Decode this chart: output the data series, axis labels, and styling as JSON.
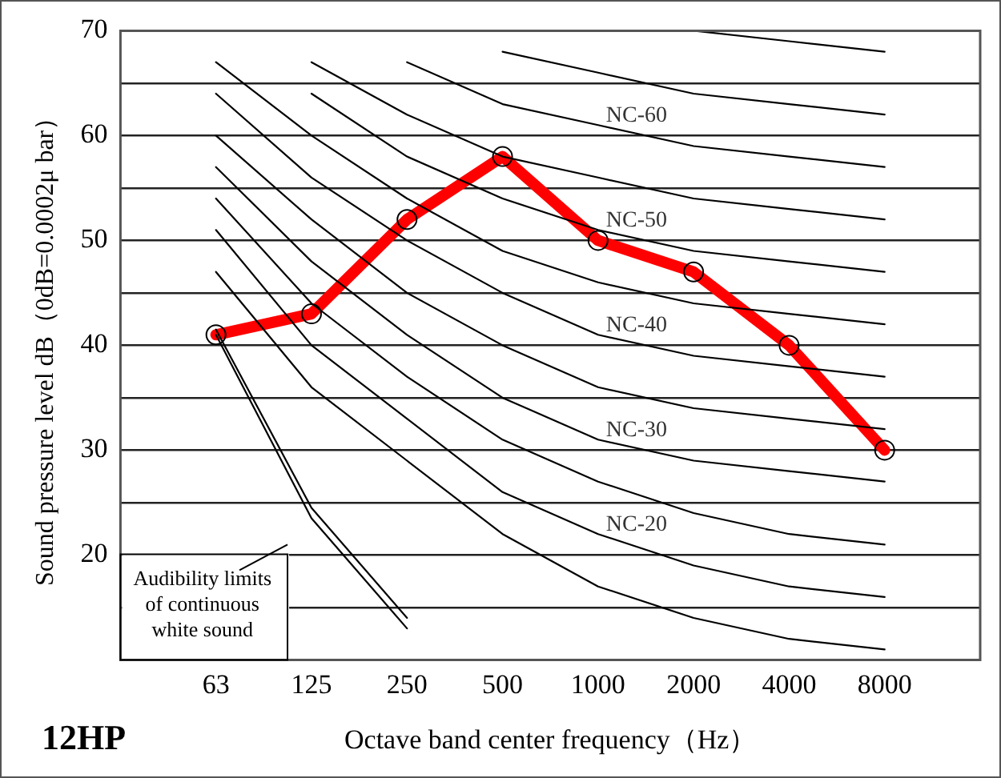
{
  "chart_data": {
    "type": "line",
    "xlabel": "Octave band center frequency（Hz）",
    "ylabel": "Sound pressure level dB（0dB=0.0002μ bar）",
    "categories": [
      "63",
      "125",
      "250",
      "500",
      "1000",
      "2000",
      "4000",
      "8000"
    ],
    "ylim": [
      10,
      70
    ],
    "yticks": [
      {
        "value": 10,
        "label": null
      },
      {
        "value": 15,
        "label": null
      },
      20,
      {
        "value": 25,
        "label": null
      },
      30,
      {
        "value": 35,
        "label": null
      },
      40,
      {
        "value": 45,
        "label": null
      },
      50,
      {
        "value": 55,
        "label": null
      },
      60,
      {
        "value": 65,
        "label": null
      },
      70
    ],
    "grid": "y",
    "legend": false,
    "series": [
      {
        "color": "#000000",
        "marker": "none",
        "values": [
          null,
          null,
          null,
          null,
          null,
          70,
          69,
          68
        ]
      },
      {
        "color": "#000000",
        "marker": "none",
        "values": [
          null,
          null,
          null,
          68,
          66,
          64,
          63,
          62
        ]
      },
      {
        "name": "NC-60",
        "color": "#000000",
        "marker": "none",
        "values": [
          null,
          null,
          67,
          63,
          61,
          59,
          58,
          57
        ]
      },
      {
        "color": "#000000",
        "marker": "none",
        "values": [
          null,
          67,
          62,
          58,
          56,
          54,
          53,
          52
        ]
      },
      {
        "name": "NC-50",
        "color": "#000000",
        "marker": "none",
        "values": [
          null,
          64,
          58,
          54,
          51,
          49,
          48,
          47
        ]
      },
      {
        "color": "#000000",
        "marker": "none",
        "values": [
          67,
          60,
          54,
          49,
          46,
          44,
          43,
          42
        ]
      },
      {
        "name": "NC-40",
        "color": "#000000",
        "marker": "none",
        "values": [
          64,
          56,
          50,
          45,
          41,
          39,
          38,
          37
        ]
      },
      {
        "color": "#000000",
        "marker": "none",
        "values": [
          60,
          52,
          45,
          40,
          36,
          34,
          33,
          32
        ]
      },
      {
        "name": "NC-30",
        "color": "#000000",
        "marker": "none",
        "values": [
          57,
          48,
          41,
          35,
          31,
          29,
          28,
          27
        ]
      },
      {
        "color": "#000000",
        "marker": "none",
        "values": [
          54,
          44,
          37,
          31,
          27,
          24,
          22,
          21
        ]
      },
      {
        "name": "NC-20",
        "color": "#000000",
        "marker": "none",
        "values": [
          51,
          40,
          33,
          26,
          22,
          19,
          17,
          16
        ]
      },
      {
        "color": "#000000",
        "marker": "none",
        "values": [
          47,
          36,
          29,
          22,
          17,
          14,
          12,
          11
        ]
      },
      {
        "color": "#000000",
        "marker": "none",
        "values": [
          41,
          23.5,
          13,
          null,
          null,
          null,
          null,
          null
        ]
      },
      {
        "color": "#000000",
        "marker": "none",
        "values": [
          41.5,
          24.5,
          14,
          null,
          null,
          null,
          null,
          null
        ]
      },
      {
        "color": "#ff0000",
        "marker": "circle",
        "values": [
          41,
          43,
          52,
          58,
          50,
          47,
          40,
          30
        ]
      }
    ],
    "annotations": [
      "Audibility limits\nof continuous\nwhite sound",
      "12HP"
    ]
  }
}
